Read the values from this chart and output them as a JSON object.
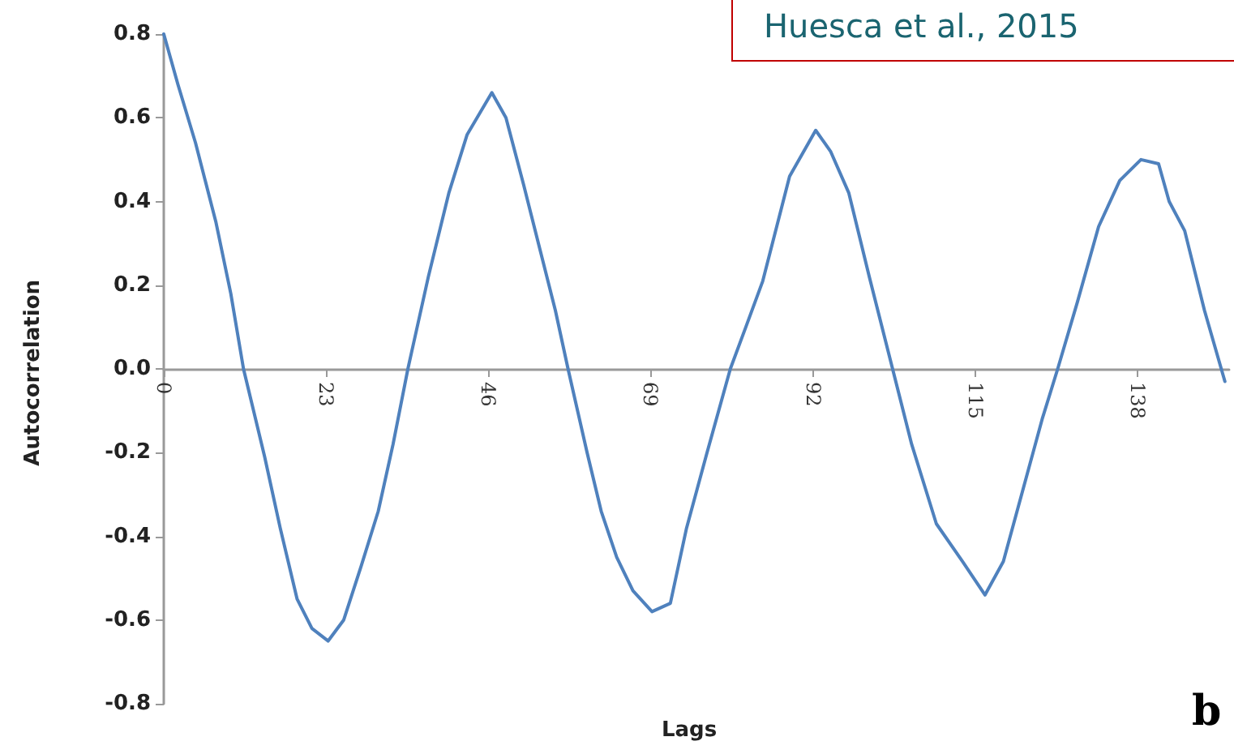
{
  "chart_data": {
    "type": "line",
    "xlabel": "Lags",
    "ylabel": "Autocorrelation",
    "annotations": [
      "Huesca et al., 2015",
      "b"
    ],
    "x": [
      0,
      2,
      4.5,
      7.4,
      9.5,
      11.3,
      14.3,
      16.5,
      18.9,
      21,
      23.3,
      25.5,
      28,
      30.4,
      32.5,
      34.6,
      37.5,
      40.4,
      43,
      46.5,
      48.5,
      51,
      53.4,
      55.5,
      57.3,
      60,
      62,
      64.2,
      66.5,
      69.2,
      71.8,
      74.1,
      77,
      80.3,
      82.5,
      84.9,
      88.7,
      92.4,
      94.5,
      97.1,
      100,
      103.3,
      106,
      109.5,
      113.2,
      116.4,
      119,
      122.4,
      124.5,
      126.7,
      129.5,
      132.5,
      135.5,
      138.5,
      141,
      142.5,
      144.7,
      147.5,
      150.4
    ],
    "series": [
      {
        "color": "#4f81bd",
        "values": [
          0.8,
          0.68,
          0.54,
          0.35,
          0.18,
          0,
          -0.21,
          -0.38,
          -0.55,
          -0.62,
          -0.65,
          -0.6,
          -0.47,
          -0.34,
          -0.18,
          0,
          0.22,
          0.42,
          0.56,
          0.66,
          0.6,
          0.44,
          0.28,
          0.14,
          0,
          -0.2,
          -0.34,
          -0.45,
          -0.53,
          -0.58,
          -0.56,
          -0.38,
          -0.2,
          0,
          0.1,
          0.21,
          0.46,
          0.57,
          0.52,
          0.42,
          0.22,
          0,
          -0.18,
          -0.37,
          -0.46,
          -0.54,
          -0.46,
          -0.25,
          -0.12,
          0,
          0.16,
          0.34,
          0.45,
          0.5,
          0.49,
          0.4,
          0.33,
          0.14,
          -0.03
        ]
      }
    ],
    "xlim": [
      0,
      151
    ],
    "xticks": [
      0,
      23,
      46,
      69,
      92,
      115,
      138
    ],
    "ylim": [
      -0.8,
      0.8
    ],
    "yticks": [
      {
        "value": -0.8,
        "label": "-0.8"
      },
      {
        "value": -0.6,
        "label": "-0.6"
      },
      {
        "value": -0.4,
        "label": "-0.4"
      },
      {
        "value": -0.2,
        "label": "-0.2"
      },
      {
        "value": 0,
        "label": "0.0"
      },
      {
        "value": 0.2,
        "label": "0.2"
      },
      {
        "value": 0.4,
        "label": "0.4"
      },
      {
        "value": 0.6,
        "label": "0.6"
      },
      {
        "value": 0.8,
        "label": "0.8"
      }
    ],
    "marker": "none",
    "line_style": "solid"
  }
}
